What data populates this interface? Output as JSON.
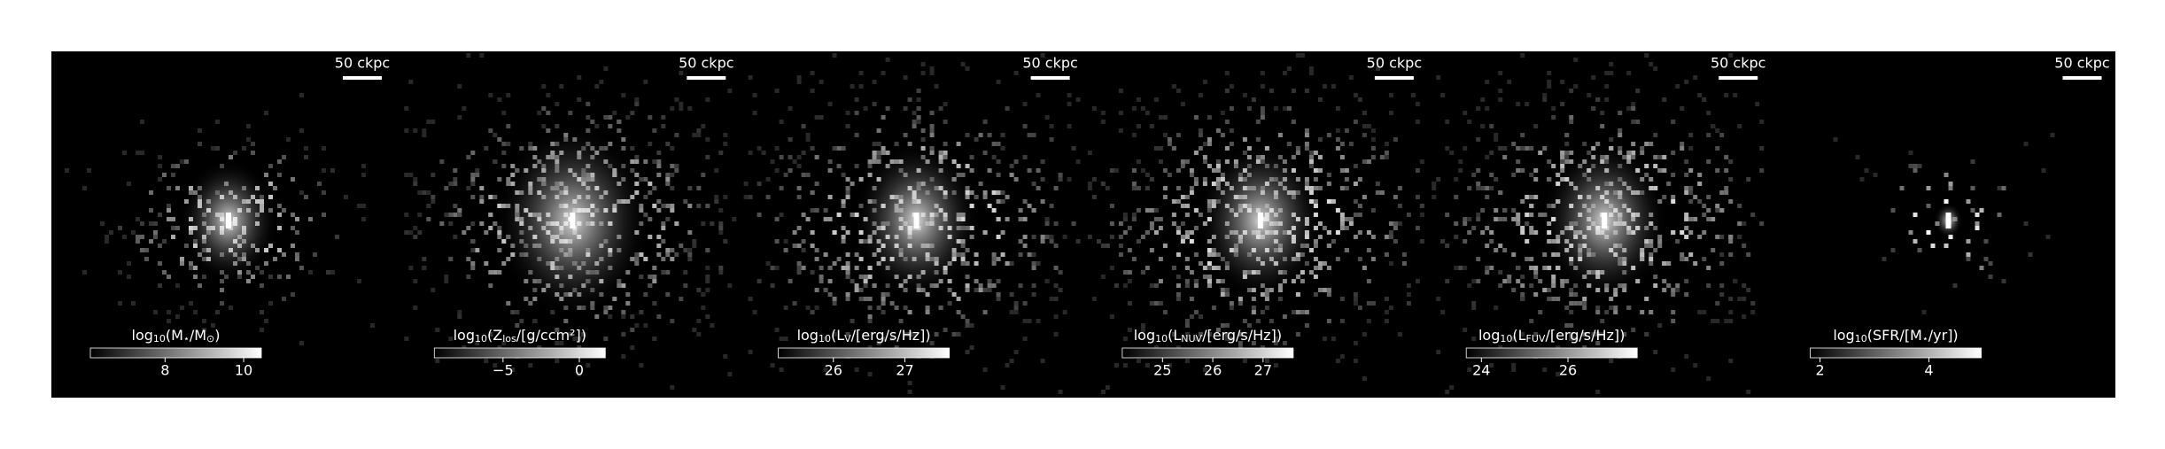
{
  "chart_data": [
    {
      "type": "map",
      "scale_bar": "50 ckpc",
      "colorbar_label": [
        "log",
        "10",
        "(M",
        "⋆",
        "/M",
        "⊙",
        ")"
      ],
      "clim": [
        6.1,
        10.45
      ],
      "cticks": [
        8,
        10
      ]
    },
    {
      "type": "map",
      "scale_bar": "50 ckpc",
      "colorbar_label": [
        "log",
        "10",
        "(Z",
        "los",
        "/[g/ccm²])"
      ],
      "clim": [
        -9.5,
        1.7
      ],
      "cticks": [
        {
          "value": -5,
          "label": "−5"
        },
        0
      ]
    },
    {
      "type": "map",
      "scale_bar": "50 ckpc",
      "colorbar_label": [
        "log",
        "10",
        "(L",
        "V",
        "/[erg/s/Hz])"
      ],
      "clim": [
        25.23,
        27.62
      ],
      "cticks": [
        26,
        27
      ]
    },
    {
      "type": "map",
      "scale_bar": "50 ckpc",
      "colorbar_label": [
        "log",
        "10",
        "(L",
        "NUV",
        "/[erg/s/Hz])"
      ],
      "clim": [
        24.2,
        27.6
      ],
      "cticks": [
        25,
        26,
        27
      ]
    },
    {
      "type": "map",
      "scale_bar": "50 ckpc",
      "colorbar_label": [
        "log",
        "10",
        "(L",
        "FUV",
        "/[erg/s/Hz])"
      ],
      "clim": [
        23.65,
        27.6
      ],
      "cticks": [
        24,
        26
      ]
    },
    {
      "type": "map",
      "scale_bar": "50 ckpc",
      "colorbar_label": [
        "log",
        "10",
        "(SFR/[M",
        "⋆",
        "/yr])"
      ],
      "clim": [
        1.82,
        4.96
      ],
      "cticks": [
        2,
        4
      ]
    }
  ]
}
